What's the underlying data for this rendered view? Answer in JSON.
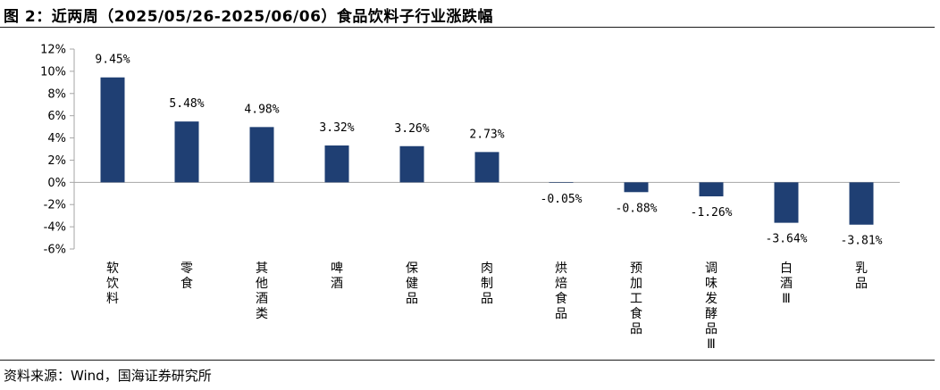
{
  "title": "图 2：近两周（2025/05/26-2025/06/06）食品饮料子行业涨跌幅",
  "source": "资料来源：Wind，国海证券研究所",
  "colors": {
    "bar": "#1f3f73",
    "axis": "#a6a6a6",
    "rule": "#1a1a1a"
  },
  "chart_data": {
    "type": "bar",
    "title": "",
    "xlabel": "",
    "ylabel": "",
    "ylim": [
      -6,
      12
    ],
    "yticks": [
      12,
      10,
      8,
      6,
      4,
      2,
      0,
      -2,
      -4,
      -6
    ],
    "ytick_labels": [
      "12%",
      "10%",
      "8%",
      "6%",
      "4%",
      "2%",
      "0%",
      "-2%",
      "-4%",
      "-6%"
    ],
    "grid": false,
    "legend": "none",
    "categories": [
      "软饮料",
      "零食",
      "其他酒类",
      "啤酒",
      "保健品",
      "肉制品",
      "烘焙食品",
      "预加工食品",
      "调味发酵品Ⅲ",
      "白酒Ⅲ",
      "乳品"
    ],
    "values": [
      9.45,
      5.48,
      4.98,
      3.32,
      3.26,
      2.73,
      -0.05,
      -0.88,
      -1.26,
      -3.64,
      -3.81
    ],
    "data_labels": [
      "9.45%",
      "5.48%",
      "4.98%",
      "3.32%",
      "3.26%",
      "2.73%",
      "-0.05%",
      "-0.88%",
      "-1.26%",
      "-3.64%",
      "-3.81%"
    ]
  }
}
